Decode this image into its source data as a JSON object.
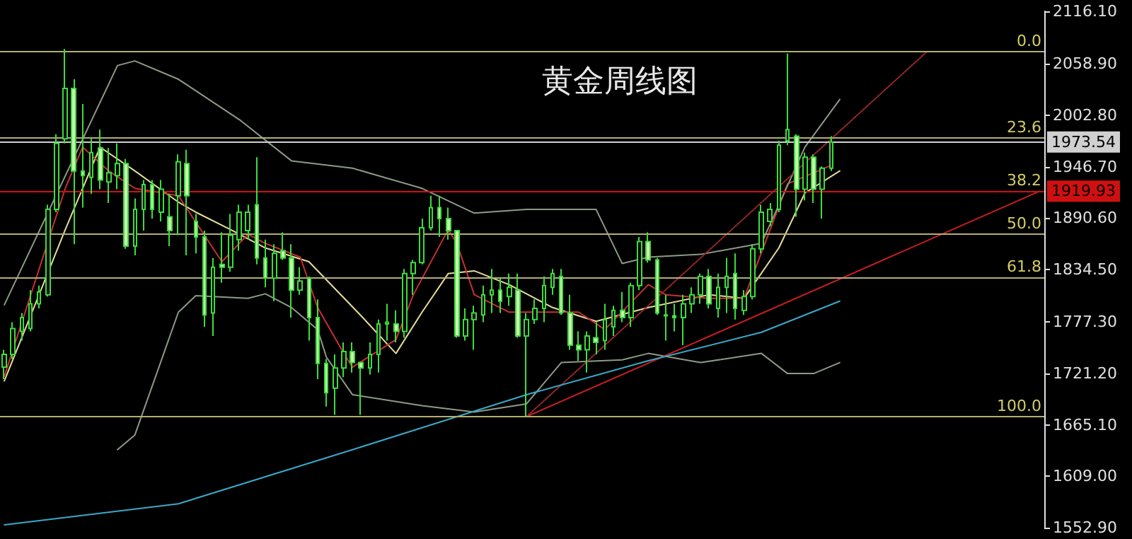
{
  "chart_data": {
    "type": "candlestick",
    "title": "黄金周线图",
    "grid": false,
    "tick_labels": "y",
    "annotations": [
      {
        "text": "0.0",
        "y": 2072
      },
      {
        "text": "23.6",
        "y": 1978
      },
      {
        "text": "38.2",
        "y": 1919.93
      },
      {
        "text": "50.0",
        "y": 1873
      },
      {
        "text": "61.8",
        "y": 1826
      },
      {
        "text": "100.0",
        "y": 1674
      }
    ],
    "categories": [
      null,
      null,
      null,
      null,
      null,
      null,
      null,
      null,
      null,
      null,
      null,
      null,
      null,
      null,
      null,
      null,
      null,
      null,
      null,
      null,
      null,
      null,
      null,
      null,
      null,
      null,
      null,
      null,
      null,
      null,
      null,
      null,
      null,
      null,
      null,
      null,
      null,
      null,
      null,
      null,
      null,
      null,
      null,
      null,
      null,
      null,
      null,
      null,
      null,
      null,
      null,
      null,
      null,
      null,
      null,
      null,
      null,
      null,
      null,
      null,
      null,
      null,
      null,
      null,
      null,
      null,
      null,
      null,
      null,
      null,
      null,
      null,
      null,
      null,
      null,
      null,
      null,
      null,
      null,
      null,
      null,
      null,
      null,
      null,
      null,
      null,
      null,
      null,
      null,
      null,
      null,
      null,
      null,
      null,
      null,
      null,
      null,
      null,
      null,
      null,
      null,
      null,
      null,
      null,
      null,
      null,
      null,
      null,
      null,
      null,
      null,
      null,
      null,
      null,
      null,
      null,
      null,
      null,
      null,
      null
    ],
    "ylim": [
      1552.9,
      2116.1
    ],
    "yticks": [
      {
        "value": 1552.9,
        "label": "1552.90"
      },
      {
        "value": 1609,
        "label": "1609.00"
      },
      {
        "value": 1665.1,
        "label": "1665.10"
      },
      {
        "value": 1721.2,
        "label": "1721.20"
      },
      {
        "value": 1777.3,
        "label": "1777.30"
      },
      {
        "value": 1834.5,
        "label": "1834.50"
      },
      {
        "value": 1890.6,
        "label": "1890.60"
      },
      {
        "value": 1946.7,
        "label": "1946.70"
      },
      {
        "value": 2002.8,
        "label": "2002.80"
      },
      {
        "value": 2058.9,
        "label": "2058.90"
      },
      {
        "value": 2116.1,
        "label": "2116.10"
      }
    ],
    "ohlc": [
      [
        1728,
        1747,
        1715,
        1742
      ],
      [
        1742,
        1777,
        1737,
        1770
      ],
      [
        1767,
        1787,
        1757,
        1782
      ],
      [
        1770,
        1812,
        1767,
        1797
      ],
      [
        1797,
        1817,
        1792,
        1810
      ],
      [
        1807,
        1905,
        1805,
        1900
      ],
      [
        1900,
        1982,
        1897,
        1972
      ],
      [
        1977,
        2075,
        1972,
        2032
      ],
      [
        2032,
        2042,
        1862,
        1942
      ],
      [
        1942,
        2015,
        1902,
        1937
      ],
      [
        1935,
        1977,
        1917,
        1962
      ],
      [
        1967,
        1987,
        1922,
        1932
      ],
      [
        1930,
        1967,
        1907,
        1940
      ],
      [
        1937,
        1972,
        1922,
        1950
      ],
      [
        1950,
        1955,
        1857,
        1860
      ],
      [
        1860,
        1912,
        1850,
        1900
      ],
      [
        1900,
        1932,
        1877,
        1927
      ],
      [
        1927,
        1932,
        1890,
        1900
      ],
      [
        1897,
        1932,
        1887,
        1922
      ],
      [
        1892,
        1917,
        1860,
        1877
      ],
      [
        1915,
        1960,
        1872,
        1952
      ],
      [
        1950,
        1965,
        1850,
        1915
      ],
      [
        1887,
        1895,
        1852,
        1870
      ],
      [
        1870,
        1877,
        1772,
        1785
      ],
      [
        1787,
        1847,
        1762,
        1837
      ],
      [
        1840,
        1875,
        1820,
        1837
      ],
      [
        1837,
        1895,
        1832,
        1872
      ],
      [
        1867,
        1905,
        1855,
        1897
      ],
      [
        1877,
        1905,
        1867,
        1897
      ],
      [
        1905,
        1957,
        1840,
        1847
      ],
      [
        1847,
        1867,
        1815,
        1825
      ],
      [
        1825,
        1862,
        1800,
        1852
      ],
      [
        1855,
        1875,
        1845,
        1847
      ],
      [
        1847,
        1862,
        1782,
        1812
      ],
      [
        1812,
        1837,
        1807,
        1822
      ],
      [
        1825,
        1827,
        1757,
        1782
      ],
      [
        1782,
        1802,
        1715,
        1732
      ],
      [
        1732,
        1737,
        1685,
        1700
      ],
      [
        1705,
        1742,
        1676,
        1727
      ],
      [
        1727,
        1755,
        1717,
        1745
      ],
      [
        1745,
        1755,
        1722,
        1733
      ],
      [
        1733,
        1733,
        1676,
        1727
      ],
      [
        1727,
        1755,
        1720,
        1742
      ],
      [
        1742,
        1780,
        1722,
        1775
      ],
      [
        1775,
        1797,
        1757,
        1777
      ],
      [
        1775,
        1790,
        1755,
        1767
      ],
      [
        1767,
        1835,
        1760,
        1830
      ],
      [
        1830,
        1845,
        1807,
        1842
      ],
      [
        1842,
        1890,
        1840,
        1880
      ],
      [
        1880,
        1915,
        1877,
        1902
      ],
      [
        1902,
        1915,
        1870,
        1890
      ],
      [
        1890,
        1902,
        1867,
        1877
      ],
      [
        1877,
        1877,
        1760,
        1762
      ],
      [
        1762,
        1792,
        1757,
        1780
      ],
      [
        1780,
        1795,
        1747,
        1787
      ],
      [
        1785,
        1817,
        1777,
        1807
      ],
      [
        1807,
        1835,
        1787,
        1812
      ],
      [
        1812,
        1825,
        1787,
        1800
      ],
      [
        1805,
        1830,
        1795,
        1815
      ],
      [
        1812,
        1830,
        1760,
        1762
      ],
      [
        1762,
        1787,
        1674,
        1780
      ],
      [
        1780,
        1802,
        1775,
        1792
      ],
      [
        1792,
        1827,
        1777,
        1817
      ],
      [
        1815,
        1835,
        1807,
        1830
      ],
      [
        1827,
        1835,
        1785,
        1787
      ],
      [
        1787,
        1807,
        1747,
        1752
      ],
      [
        1752,
        1767,
        1735,
        1747
      ],
      [
        1747,
        1767,
        1722,
        1762
      ],
      [
        1760,
        1777,
        1742,
        1755
      ],
      [
        1757,
        1797,
        1747,
        1780
      ],
      [
        1772,
        1795,
        1762,
        1790
      ],
      [
        1790,
        1810,
        1777,
        1782
      ],
      [
        1782,
        1820,
        1772,
        1817
      ],
      [
        1817,
        1870,
        1812,
        1865
      ],
      [
        1865,
        1875,
        1842,
        1845
      ],
      [
        1845,
        1847,
        1785,
        1787
      ],
      [
        1785,
        1807,
        1757,
        1784
      ],
      [
        1784,
        1797,
        1767,
        1782
      ],
      [
        1782,
        1807,
        1752,
        1797
      ],
      [
        1797,
        1815,
        1787,
        1807
      ],
      [
        1807,
        1830,
        1797,
        1827
      ],
      [
        1827,
        1835,
        1792,
        1797
      ],
      [
        1792,
        1830,
        1782,
        1815
      ],
      [
        1815,
        1847,
        1787,
        1827
      ],
      [
        1830,
        1852,
        1780,
        1792
      ],
      [
        1790,
        1812,
        1785,
        1805
      ],
      [
        1805,
        1862,
        1802,
        1857
      ],
      [
        1857,
        1905,
        1852,
        1897
      ],
      [
        1887,
        1907,
        1882,
        1900
      ],
      [
        1900,
        1975,
        1897,
        1970
      ],
      [
        1975,
        2070,
        1970,
        1987
      ],
      [
        1980,
        1982,
        1892,
        1922
      ],
      [
        1922,
        1962,
        1910,
        1957
      ],
      [
        1957,
        1960,
        1907,
        1922
      ],
      [
        1922,
        1947,
        1890,
        1945
      ],
      [
        1945,
        1980,
        1942,
        1973.54
      ],
      null,
      null,
      null,
      null,
      null,
      null,
      null,
      null,
      null,
      null,
      null,
      null,
      null,
      null,
      null,
      null,
      null,
      null,
      null,
      null,
      null,
      null,
      null,
      null
    ],
    "series": [
      {
        "type": "line",
        "color": "#3aa8c8",
        "values": [
          1556,
          null,
          null,
          null,
          null,
          null,
          null,
          null,
          null,
          null,
          null,
          null,
          null,
          null,
          null,
          null,
          null,
          null,
          null,
          null,
          1579,
          null,
          null,
          null,
          null,
          null,
          null,
          null,
          null,
          null,
          null,
          null,
          null,
          null,
          null,
          null,
          null,
          null,
          null,
          null,
          1638,
          null,
          null,
          null,
          null,
          null,
          null,
          null,
          null,
          null,
          null,
          null,
          null,
          null,
          null,
          null,
          null,
          null,
          null,
          null,
          1698,
          null,
          null,
          null,
          null,
          null,
          null,
          null,
          null,
          null,
          null,
          null,
          null,
          null,
          1735,
          null,
          null,
          null,
          null,
          null,
          null,
          null,
          null,
          null,
          null,
          null,
          null,
          1766,
          null,
          null,
          null,
          null,
          null,
          null,
          null,
          null,
          1800,
          null,
          null,
          null,
          null,
          null,
          null,
          null,
          null,
          null,
          null,
          null,
          null,
          null,
          null,
          null,
          null,
          null,
          null,
          null,
          null,
          null,
          null,
          null
        ]
      },
      {
        "type": "line",
        "color": "#c81e1e",
        "values": [
          null,
          null,
          null,
          null,
          null,
          null,
          null,
          null,
          null,
          null,
          null,
          null,
          null,
          null,
          null,
          null,
          null,
          null,
          null,
          null,
          null,
          null,
          null,
          null,
          null,
          null,
          null,
          null,
          null,
          null,
          null,
          null,
          null,
          null,
          null,
          null,
          null,
          null,
          null,
          null,
          null,
          null,
          null,
          null,
          null,
          null,
          null,
          null,
          null,
          null,
          null,
          null,
          null,
          null,
          null,
          null,
          null,
          null,
          null,
          null,
          1674,
          null,
          null,
          null,
          null,
          null,
          null,
          null,
          null,
          null,
          null,
          null,
          null,
          null,
          null,
          null,
          null,
          null,
          null,
          null,
          null,
          null,
          null,
          null,
          null,
          null,
          null,
          null,
          null,
          null,
          null,
          null,
          null,
          null,
          null,
          null,
          null,
          null,
          null,
          null,
          null,
          null,
          null,
          null,
          null,
          null,
          null,
          null,
          null,
          null,
          null,
          null,
          null,
          null,
          null,
          null,
          null,
          null,
          null,
          1920
        ]
      },
      {
        "type": "line",
        "color": "#a02828",
        "line_style": "dotted",
        "values": [
          null,
          null,
          null,
          null,
          null,
          null,
          null,
          null,
          null,
          null,
          null,
          null,
          null,
          null,
          null,
          null,
          null,
          null,
          null,
          null,
          null,
          null,
          null,
          null,
          null,
          null,
          null,
          null,
          null,
          null,
          null,
          null,
          null,
          null,
          null,
          null,
          null,
          null,
          null,
          null,
          null,
          null,
          null,
          null,
          null,
          null,
          null,
          null,
          null,
          null,
          null,
          null,
          null,
          null,
          null,
          null,
          null,
          null,
          null,
          null,
          1674,
          null,
          null,
          null,
          null,
          null,
          null,
          null,
          null,
          null,
          null,
          null,
          null,
          null,
          null,
          null,
          null,
          null,
          null,
          null,
          null,
          null,
          null,
          null,
          null,
          null,
          null,
          null,
          null,
          null,
          null,
          null,
          null,
          null,
          null,
          null,
          null,
          null,
          null,
          null,
          null,
          null,
          null,
          null,
          null,
          null,
          2072,
          null,
          null,
          null,
          null,
          null,
          null,
          null,
          null,
          null,
          null,
          null,
          null,
          null
        ]
      },
      {
        "type": "line",
        "color": "#8c9a86",
        "values": [
          1796,
          null,
          null,
          null,
          null,
          null,
          null,
          null,
          null,
          null,
          null,
          null,
          null,
          2057,
          null,
          2062,
          null,
          null,
          null,
          null,
          2042,
          null,
          null,
          null,
          null,
          null,
          null,
          1998,
          null,
          null,
          null,
          null,
          null,
          1953,
          null,
          null,
          null,
          null,
          null,
          null,
          1945,
          null,
          null,
          null,
          null,
          null,
          null,
          null,
          1923,
          null,
          null,
          null,
          null,
          null,
          1896,
          null,
          null,
          null,
          null,
          null,
          1900,
          null,
          null,
          null,
          1900,
          null,
          null,
          null,
          1900,
          null,
          null,
          1841,
          null,
          null,
          1848,
          null,
          null,
          null,
          null,
          null,
          1851,
          null,
          null,
          null,
          null,
          null,
          null,
          1863,
          null,
          null,
          null,
          null,
          1968,
          null,
          null,
          null,
          2020,
          null,
          null,
          null,
          null,
          null,
          null,
          null,
          null,
          null,
          null,
          null,
          null,
          null,
          null,
          null,
          null,
          null,
          null,
          null,
          null,
          null,
          null,
          null
        ]
      },
      {
        "type": "line",
        "color": "#8c9a86",
        "values": [
          null,
          null,
          null,
          null,
          null,
          null,
          null,
          null,
          null,
          null,
          null,
          null,
          null,
          1638,
          null,
          1654,
          null,
          null,
          null,
          null,
          1788,
          null,
          1806,
          null,
          null,
          null,
          null,
          null,
          1803,
          null,
          1808,
          null,
          null,
          1793,
          null,
          null,
          1769,
          1739,
          null,
          null,
          1698,
          null,
          null,
          null,
          null,
          null,
          null,
          null,
          1686,
          null,
          null,
          null,
          null,
          null,
          1679,
          null,
          null,
          null,
          null,
          null,
          1688,
          null,
          null,
          null,
          1733,
          null,
          null,
          null,
          null,
          null,
          null,
          1736,
          null,
          null,
          1743,
          null,
          null,
          null,
          null,
          null,
          1733,
          null,
          null,
          null,
          null,
          null,
          null,
          1743,
          null,
          null,
          1721,
          null,
          null,
          1721,
          null,
          null,
          1733,
          null,
          null,
          null,
          null,
          null,
          null,
          null,
          null,
          null,
          null,
          null,
          null,
          null,
          null,
          null,
          null,
          null,
          null,
          null,
          null,
          null,
          null,
          null
        ]
      },
      {
        "type": "line",
        "color": "#c83030",
        "values": [
          1718,
          null,
          null,
          null,
          null,
          null,
          null,
          1923,
          null,
          1968,
          null,
          null,
          1942,
          null,
          null,
          1923,
          null,
          null,
          null,
          null,
          1915,
          null,
          null,
          null,
          null,
          1843,
          null,
          null,
          1873,
          null,
          1863,
          null,
          null,
          null,
          1848,
          null,
          1793,
          null,
          null,
          1743,
          1728,
          null,
          null,
          null,
          null,
          1758,
          null,
          1807,
          null,
          null,
          null,
          1878,
          1863,
          null,
          1807,
          null,
          null,
          null,
          1788,
          null,
          null,
          1788,
          null,
          null,
          null,
          null,
          1788,
          null,
          null,
          1769,
          null,
          null,
          null,
          null,
          1818,
          null,
          1807,
          null,
          null,
          null,
          null,
          1803,
          null,
          null,
          null,
          1803,
          null,
          null,
          null,
          null,
          1928,
          null,
          null,
          null,
          null,
          1948,
          null,
          null,
          null,
          null,
          null,
          null,
          null,
          null,
          null,
          null,
          null,
          null,
          null,
          null,
          null,
          null,
          null,
          null,
          null,
          null,
          null,
          null,
          null,
          null
        ]
      },
      {
        "type": "line",
        "color": "#e6dc9a",
        "values": [
          1713,
          null,
          null,
          null,
          null,
          null,
          null,
          1878,
          null,
          null,
          null,
          1968,
          null,
          null,
          null,
          1942,
          null,
          null,
          null,
          null,
          1908,
          null,
          1897,
          null,
          null,
          null,
          1878,
          null,
          null,
          null,
          1858,
          null,
          null,
          null,
          null,
          1843,
          null,
          null,
          null,
          null,
          null,
          1784,
          null,
          null,
          null,
          1743,
          null,
          null,
          1788,
          null,
          null,
          1830,
          null,
          null,
          1833,
          null,
          null,
          null,
          1818,
          null,
          null,
          1803,
          null,
          1793,
          null,
          null,
          null,
          null,
          1778,
          null,
          null,
          null,
          null,
          null,
          1793,
          null,
          null,
          null,
          null,
          null,
          null,
          1807,
          null,
          null,
          null,
          1803,
          null,
          null,
          null,
          1858,
          null,
          null,
          1918,
          null,
          null,
          null,
          1942,
          null,
          null,
          null,
          null,
          null,
          null,
          null,
          null,
          null,
          null,
          null,
          null,
          null,
          null,
          null,
          null,
          null,
          null,
          null,
          null,
          null,
          null,
          null
        ]
      }
    ],
    "ref_lines": [
      {
        "axis": "y",
        "value": 2072,
        "color": "#b4ae74"
      },
      {
        "axis": "y",
        "value": 1978,
        "color": "#b4ae74"
      },
      {
        "axis": "y",
        "value": 1873,
        "color": "#b4ae74"
      },
      {
        "axis": "y",
        "value": 1826,
        "color": "#b4ae74"
      },
      {
        "axis": "y",
        "value": 1674,
        "color": "#b4ae74"
      },
      {
        "axis": "y",
        "value": 1973.54,
        "label": "1973.54",
        "color": "#d0d0d0"
      },
      {
        "axis": "y",
        "value": 1919.93,
        "label": "1919.93",
        "color": "#d01010"
      }
    ]
  }
}
